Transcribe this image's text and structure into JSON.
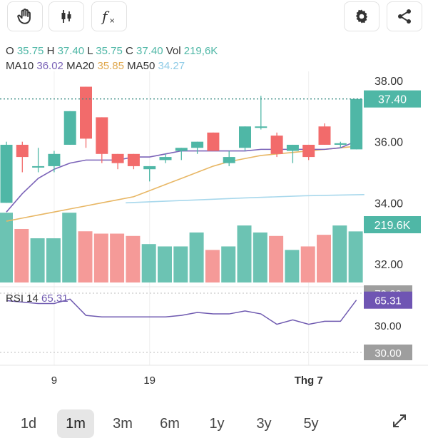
{
  "toolbar": {
    "icons": [
      "hand-icon",
      "candlestick-icon",
      "function-icon",
      "gear-icon",
      "share-icon"
    ]
  },
  "ohlc": {
    "o_label": "O",
    "o_value": "35.75",
    "h_label": "H",
    "h_value": "37.40",
    "l_label": "L",
    "l_value": "35.75",
    "c_label": "C",
    "c_value": "37.40",
    "vol_label": "Vol",
    "vol_value": "219,6K"
  },
  "ma": {
    "ma10_label": "MA10",
    "ma10_value": "36.02",
    "ma20_label": "MA20",
    "ma20_value": "35.85",
    "ma50_label": "MA50",
    "ma50_value": "34.27"
  },
  "colors": {
    "up": "#4fb7a6",
    "down": "#f26b6b",
    "up_vol": "#6cc3b3",
    "down_vol": "#f59a98",
    "ma10": "#7b63b8",
    "ma20": "#e8b765",
    "ma50": "#a8d8ec",
    "rsi": "#6f5ab0",
    "price_tag": "#4fb7a6",
    "rsi_tag": "#6f55b3",
    "level_tag": "#9e9e9e"
  },
  "chart_data": {
    "type": "candlestick",
    "y_ticks": [
      "38.00",
      "36.00",
      "34.00",
      "32.00"
    ],
    "ylim": [
      31.5,
      38.5
    ],
    "x_labels": [
      {
        "label": "9",
        "index": 3
      },
      {
        "label": "19",
        "index": 9
      },
      {
        "label": "Thg 7",
        "index": 19
      }
    ],
    "current_price": "37.40",
    "current_price_value": 37.4,
    "current_volume": "219.6K",
    "volume_max": 325000,
    "candles": [
      {
        "o": 34.0,
        "h": 36.0,
        "l": 34.0,
        "c": 35.9
      },
      {
        "o": 35.9,
        "h": 36.0,
        "l": 35.0,
        "c": 35.5
      },
      {
        "o": 35.2,
        "h": 35.8,
        "l": 35.0,
        "c": 35.2
      },
      {
        "o": 35.2,
        "h": 35.7,
        "l": 35.0,
        "c": 35.6
      },
      {
        "o": 35.9,
        "h": 37.0,
        "l": 35.9,
        "c": 37.0
      },
      {
        "o": 37.8,
        "h": 37.8,
        "l": 35.8,
        "c": 36.1
      },
      {
        "o": 36.8,
        "h": 36.8,
        "l": 35.3,
        "c": 35.6
      },
      {
        "o": 35.6,
        "h": 35.6,
        "l": 35.1,
        "c": 35.3
      },
      {
        "o": 35.6,
        "h": 35.6,
        "l": 35.1,
        "c": 35.2
      },
      {
        "o": 35.1,
        "h": 35.2,
        "l": 34.7,
        "c": 35.2
      },
      {
        "o": 35.4,
        "h": 35.6,
        "l": 35.3,
        "c": 35.5
      },
      {
        "o": 35.7,
        "h": 35.8,
        "l": 35.4,
        "c": 35.8
      },
      {
        "o": 35.8,
        "h": 36.0,
        "l": 35.6,
        "c": 36.0
      },
      {
        "o": 36.3,
        "h": 36.3,
        "l": 35.7,
        "c": 35.7
      },
      {
        "o": 35.3,
        "h": 35.7,
        "l": 35.2,
        "c": 35.5
      },
      {
        "o": 35.8,
        "h": 36.5,
        "l": 35.7,
        "c": 36.5
      },
      {
        "o": 36.5,
        "h": 37.5,
        "l": 36.4,
        "c": 36.5
      },
      {
        "o": 36.2,
        "h": 36.3,
        "l": 35.5,
        "c": 35.6
      },
      {
        "o": 35.7,
        "h": 35.9,
        "l": 35.3,
        "c": 35.9
      },
      {
        "o": 35.9,
        "h": 35.9,
        "l": 35.4,
        "c": 35.5
      },
      {
        "o": 36.5,
        "h": 36.6,
        "l": 35.9,
        "c": 35.9
      },
      {
        "o": 35.9,
        "h": 36.0,
        "l": 35.8,
        "c": 35.95
      },
      {
        "o": 35.75,
        "h": 37.4,
        "l": 35.75,
        "c": 37.4
      }
    ],
    "volumes": [
      300000,
      230000,
      190000,
      190000,
      300000,
      220000,
      210000,
      210000,
      200000,
      165000,
      155000,
      155000,
      215000,
      140000,
      155000,
      245000,
      215000,
      200000,
      140000,
      155000,
      205000,
      245000,
      219600
    ],
    "ma10": [
      33.7,
      34.3,
      34.8,
      35.1,
      35.3,
      35.4,
      35.4,
      35.4,
      35.5,
      35.5,
      35.6,
      35.7,
      35.7,
      35.7,
      35.7,
      35.7,
      35.75,
      35.75,
      35.75,
      35.75,
      35.75,
      35.8,
      36.02
    ],
    "ma20": [
      33.4,
      33.5,
      33.6,
      33.7,
      33.8,
      33.9,
      34.0,
      34.1,
      34.2,
      34.4,
      34.6,
      34.8,
      35.0,
      35.2,
      35.35,
      35.45,
      35.55,
      35.6,
      35.65,
      35.7,
      35.75,
      35.8,
      35.85
    ],
    "ma50": {
      "start_index": 7.5,
      "values": [
        34.0,
        34.08,
        34.16,
        34.23,
        34.27
      ],
      "end_index": 22.5
    },
    "rsi": {
      "label": "RSI 14",
      "value": "65.31",
      "levels": [
        {
          "label": "70.00",
          "value": 70
        },
        {
          "label": "30.00",
          "value": 30
        }
      ],
      "tick_label": "30.00",
      "values": [
        65,
        64,
        63,
        63,
        66,
        55,
        54,
        54,
        54,
        54,
        54,
        55,
        57,
        56,
        56,
        58,
        56,
        49,
        52,
        49,
        51,
        51,
        65.31
      ]
    }
  },
  "periods": [
    {
      "label": "1d"
    },
    {
      "label": "1m",
      "active": true
    },
    {
      "label": "3m"
    },
    {
      "label": "6m"
    },
    {
      "label": "1y"
    },
    {
      "label": "3y"
    },
    {
      "label": "5y"
    }
  ]
}
